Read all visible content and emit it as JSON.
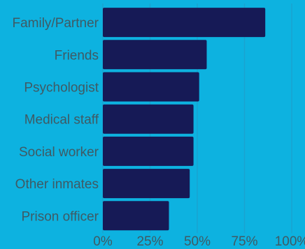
{
  "colors": {
    "background": "#0db2e0",
    "bar": "#161a56",
    "grid": "#1aa3cf",
    "text": "#3f5a64"
  },
  "chart_data": {
    "type": "bar",
    "orientation": "horizontal",
    "categories": [
      "Family/Partner",
      "Friends",
      "Psychologist",
      "Medical staff",
      "Social worker",
      "Other inmates",
      "Prison officer"
    ],
    "values": [
      86,
      55,
      51,
      48,
      48,
      46,
      35
    ],
    "unit": "%",
    "xlim": [
      0,
      100
    ],
    "xticks": [
      0,
      25,
      50,
      75,
      100
    ],
    "xtick_labels": [
      "0%",
      "25%",
      "50%",
      "75%",
      "100%"
    ],
    "title": "",
    "xlabel": "",
    "ylabel": "",
    "grid": true,
    "legend": "none"
  }
}
